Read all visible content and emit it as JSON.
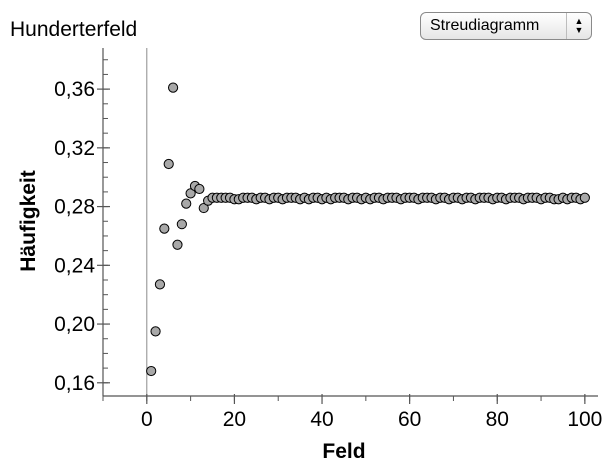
{
  "header": {
    "title": "Hunderterfeld",
    "view_select": {
      "value": "Streudiagramm"
    }
  },
  "colors": {
    "point_fill": "#a8a8a8",
    "point_stroke": "#000000",
    "axis": "#555555"
  },
  "chart_data": {
    "type": "scatter",
    "title": "",
    "xlabel": "Feld",
    "ylabel": "Häufigkeit",
    "xlim": [
      -10,
      103
    ],
    "ylim": [
      0.151,
      0.388
    ],
    "x_ticks": [
      0,
      20,
      40,
      60,
      80,
      100
    ],
    "x_tick_labels": [
      "0",
      "20",
      "40",
      "60",
      "80",
      "100"
    ],
    "y_ticks": [
      0.16,
      0.2,
      0.24,
      0.28,
      0.32,
      0.36
    ],
    "y_tick_labels": [
      "0,16",
      "0,20",
      "0,24",
      "0,28",
      "0,32",
      "0,36"
    ],
    "grid": false,
    "x": [
      1,
      2,
      3,
      4,
      5,
      6,
      7,
      8,
      9,
      10,
      11,
      12,
      13,
      14,
      15,
      16,
      17,
      18,
      19,
      20,
      21,
      22,
      23,
      24,
      25,
      26,
      27,
      28,
      29,
      30,
      31,
      32,
      33,
      34,
      35,
      36,
      37,
      38,
      39,
      40,
      41,
      42,
      43,
      44,
      45,
      46,
      47,
      48,
      49,
      50,
      51,
      52,
      53,
      54,
      55,
      56,
      57,
      58,
      59,
      60,
      61,
      62,
      63,
      64,
      65,
      66,
      67,
      68,
      69,
      70,
      71,
      72,
      73,
      74,
      75,
      76,
      77,
      78,
      79,
      80,
      81,
      82,
      83,
      84,
      85,
      86,
      87,
      88,
      89,
      90,
      91,
      92,
      93,
      94,
      95,
      96,
      97,
      98,
      99,
      100
    ],
    "y": [
      0.168,
      0.195,
      0.227,
      0.265,
      0.309,
      0.361,
      0.254,
      0.268,
      0.282,
      0.289,
      0.294,
      0.292,
      0.279,
      0.284,
      0.286,
      0.286,
      0.286,
      0.286,
      0.286,
      0.285,
      0.285,
      0.286,
      0.286,
      0.286,
      0.285,
      0.286,
      0.286,
      0.285,
      0.286,
      0.286,
      0.285,
      0.286,
      0.286,
      0.286,
      0.285,
      0.286,
      0.285,
      0.286,
      0.286,
      0.285,
      0.286,
      0.285,
      0.286,
      0.286,
      0.286,
      0.285,
      0.286,
      0.286,
      0.285,
      0.286,
      0.285,
      0.286,
      0.286,
      0.285,
      0.286,
      0.286,
      0.286,
      0.285,
      0.286,
      0.286,
      0.286,
      0.285,
      0.286,
      0.286,
      0.286,
      0.285,
      0.286,
      0.286,
      0.285,
      0.286,
      0.286,
      0.285,
      0.286,
      0.286,
      0.285,
      0.286,
      0.286,
      0.286,
      0.285,
      0.286,
      0.286,
      0.285,
      0.286,
      0.286,
      0.286,
      0.285,
      0.286,
      0.286,
      0.286,
      0.285,
      0.286,
      0.286,
      0.285,
      0.285,
      0.286,
      0.285,
      0.286,
      0.286,
      0.285,
      0.286
    ]
  }
}
